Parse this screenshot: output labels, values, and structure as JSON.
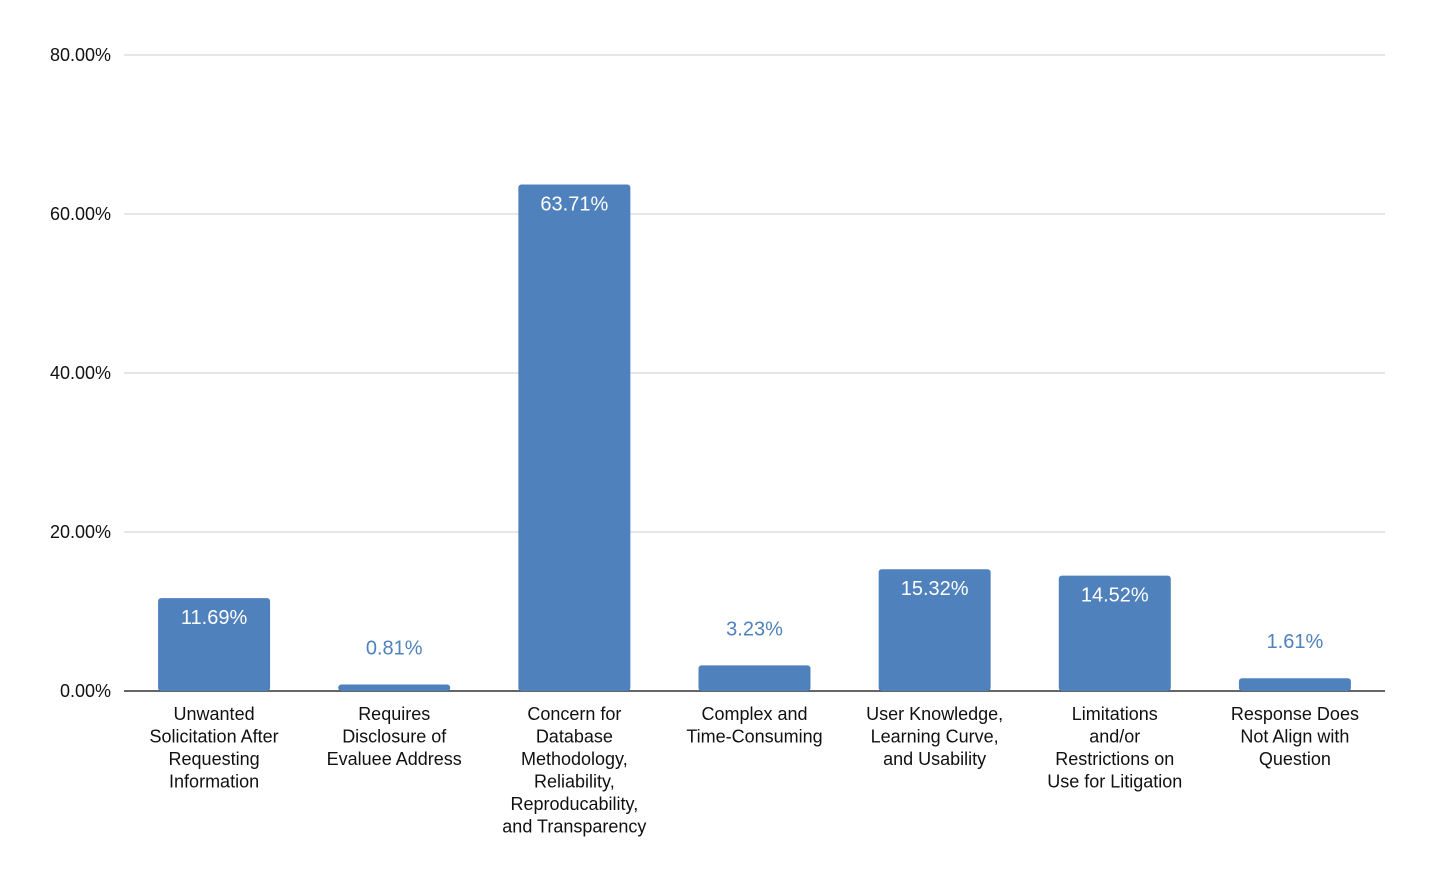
{
  "chart_data": {
    "type": "bar",
    "title": "",
    "xlabel": "",
    "ylabel": "",
    "ylim": [
      0,
      80
    ],
    "yticks": [
      0,
      20,
      40,
      60,
      80
    ],
    "ytick_labels": [
      "0.00%",
      "20.00%",
      "40.00%",
      "60.00%",
      "80.00%"
    ],
    "grid": true,
    "legend": "none",
    "categories": [
      [
        "Unwanted",
        "Solicitation After",
        "Requesting",
        "Information"
      ],
      [
        "Requires",
        "Disclosure of",
        "Evaluee Address"
      ],
      [
        "Concern for",
        "Database",
        "Methodology,",
        "Reliability,",
        "Reproducability,",
        "and Transparency"
      ],
      [
        "Complex and",
        "Time-Consuming"
      ],
      [
        "User Knowledge,",
        "Learning Curve,",
        "and Usability"
      ],
      [
        "Limitations",
        "and/or",
        "Restrictions on",
        "Use for Litigation"
      ],
      [
        "Response Does",
        "Not Align with",
        "Question"
      ]
    ],
    "values": [
      11.69,
      0.81,
      63.71,
      3.23,
      15.32,
      14.52,
      1.61
    ],
    "data_labels": [
      "11.69%",
      "0.81%",
      "63.71%",
      "3.23%",
      "15.32%",
      "14.52%",
      "1.61%"
    ],
    "colors": {
      "bar": "#4f81bd",
      "label_inside": "#ffffff",
      "label_outside": "#4f81bd"
    }
  }
}
